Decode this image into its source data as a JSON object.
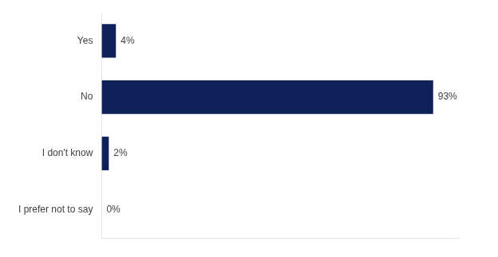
{
  "chart_data": {
    "type": "bar",
    "orientation": "horizontal",
    "categories": [
      "Yes",
      "No",
      "I don't know",
      "I prefer not to say"
    ],
    "values": [
      4,
      93,
      2,
      0
    ],
    "value_labels": [
      "4%",
      "93%",
      "2%",
      "0%"
    ],
    "data_labels": true,
    "color": "#0d2158",
    "xlim": [
      0,
      100
    ],
    "grid": false,
    "tick_labels": "y"
  }
}
